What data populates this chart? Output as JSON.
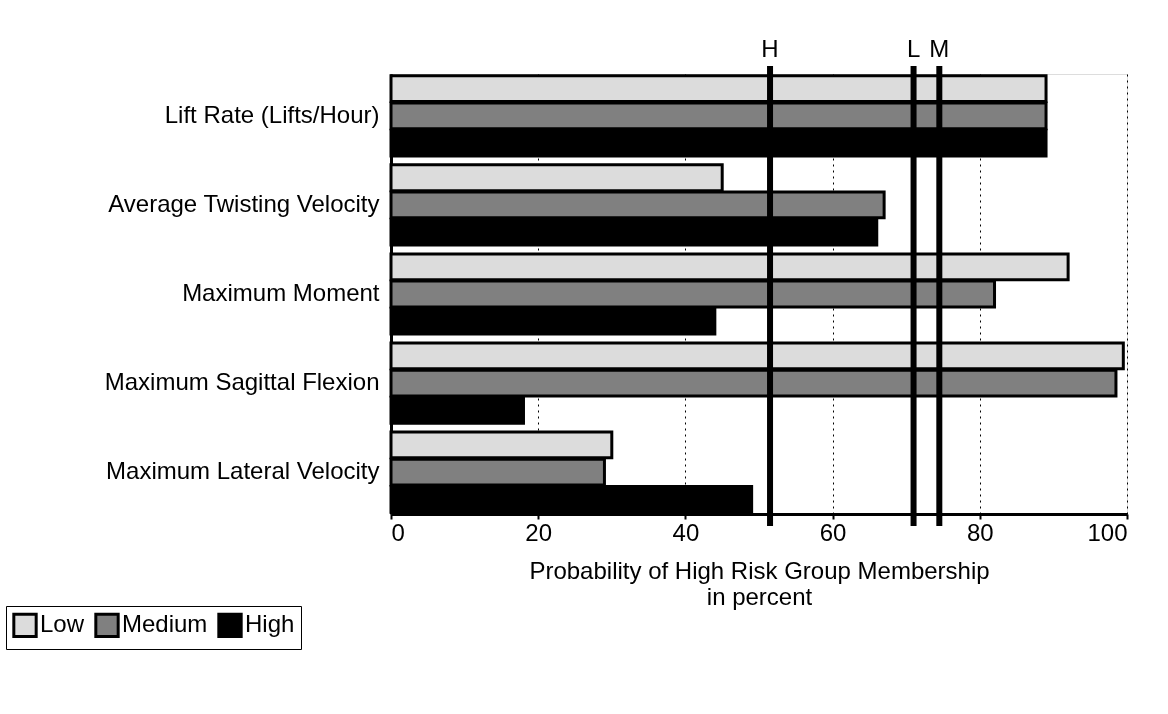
{
  "chart_data": {
    "type": "bar",
    "orientation": "horizontal",
    "categories": [
      "Lift Rate (Lifts/Hour)",
      "Average Twisting Velocity",
      "Maximum Moment",
      "Maximum Sagittal Flexion",
      "Maximum Lateral Velocity"
    ],
    "series": [
      {
        "name": "Low",
        "color": "#dcdcdc",
        "values": [
          89,
          45,
          92,
          99.5,
          30
        ]
      },
      {
        "name": "Medium",
        "color": "#808080",
        "values": [
          89,
          67,
          82,
          98.5,
          29
        ]
      },
      {
        "name": "High",
        "color": "#000000",
        "values": [
          89,
          66,
          44,
          18,
          49
        ]
      }
    ],
    "xlabel": "Probability of High Risk Group Membership\nin percent",
    "xlim": [
      0,
      100
    ],
    "xticks": [
      0,
      20,
      40,
      60,
      80,
      100
    ],
    "grid": "x",
    "legend": "bottom left",
    "ref_lines": [
      {
        "axis": "x",
        "value": 51.5,
        "label": "H",
        "color": "#000000"
      },
      {
        "axis": "x",
        "value": 71,
        "label": "L",
        "color": "#000000"
      },
      {
        "axis": "x",
        "value": 74.5,
        "label": "M",
        "color": "#000000"
      }
    ]
  }
}
